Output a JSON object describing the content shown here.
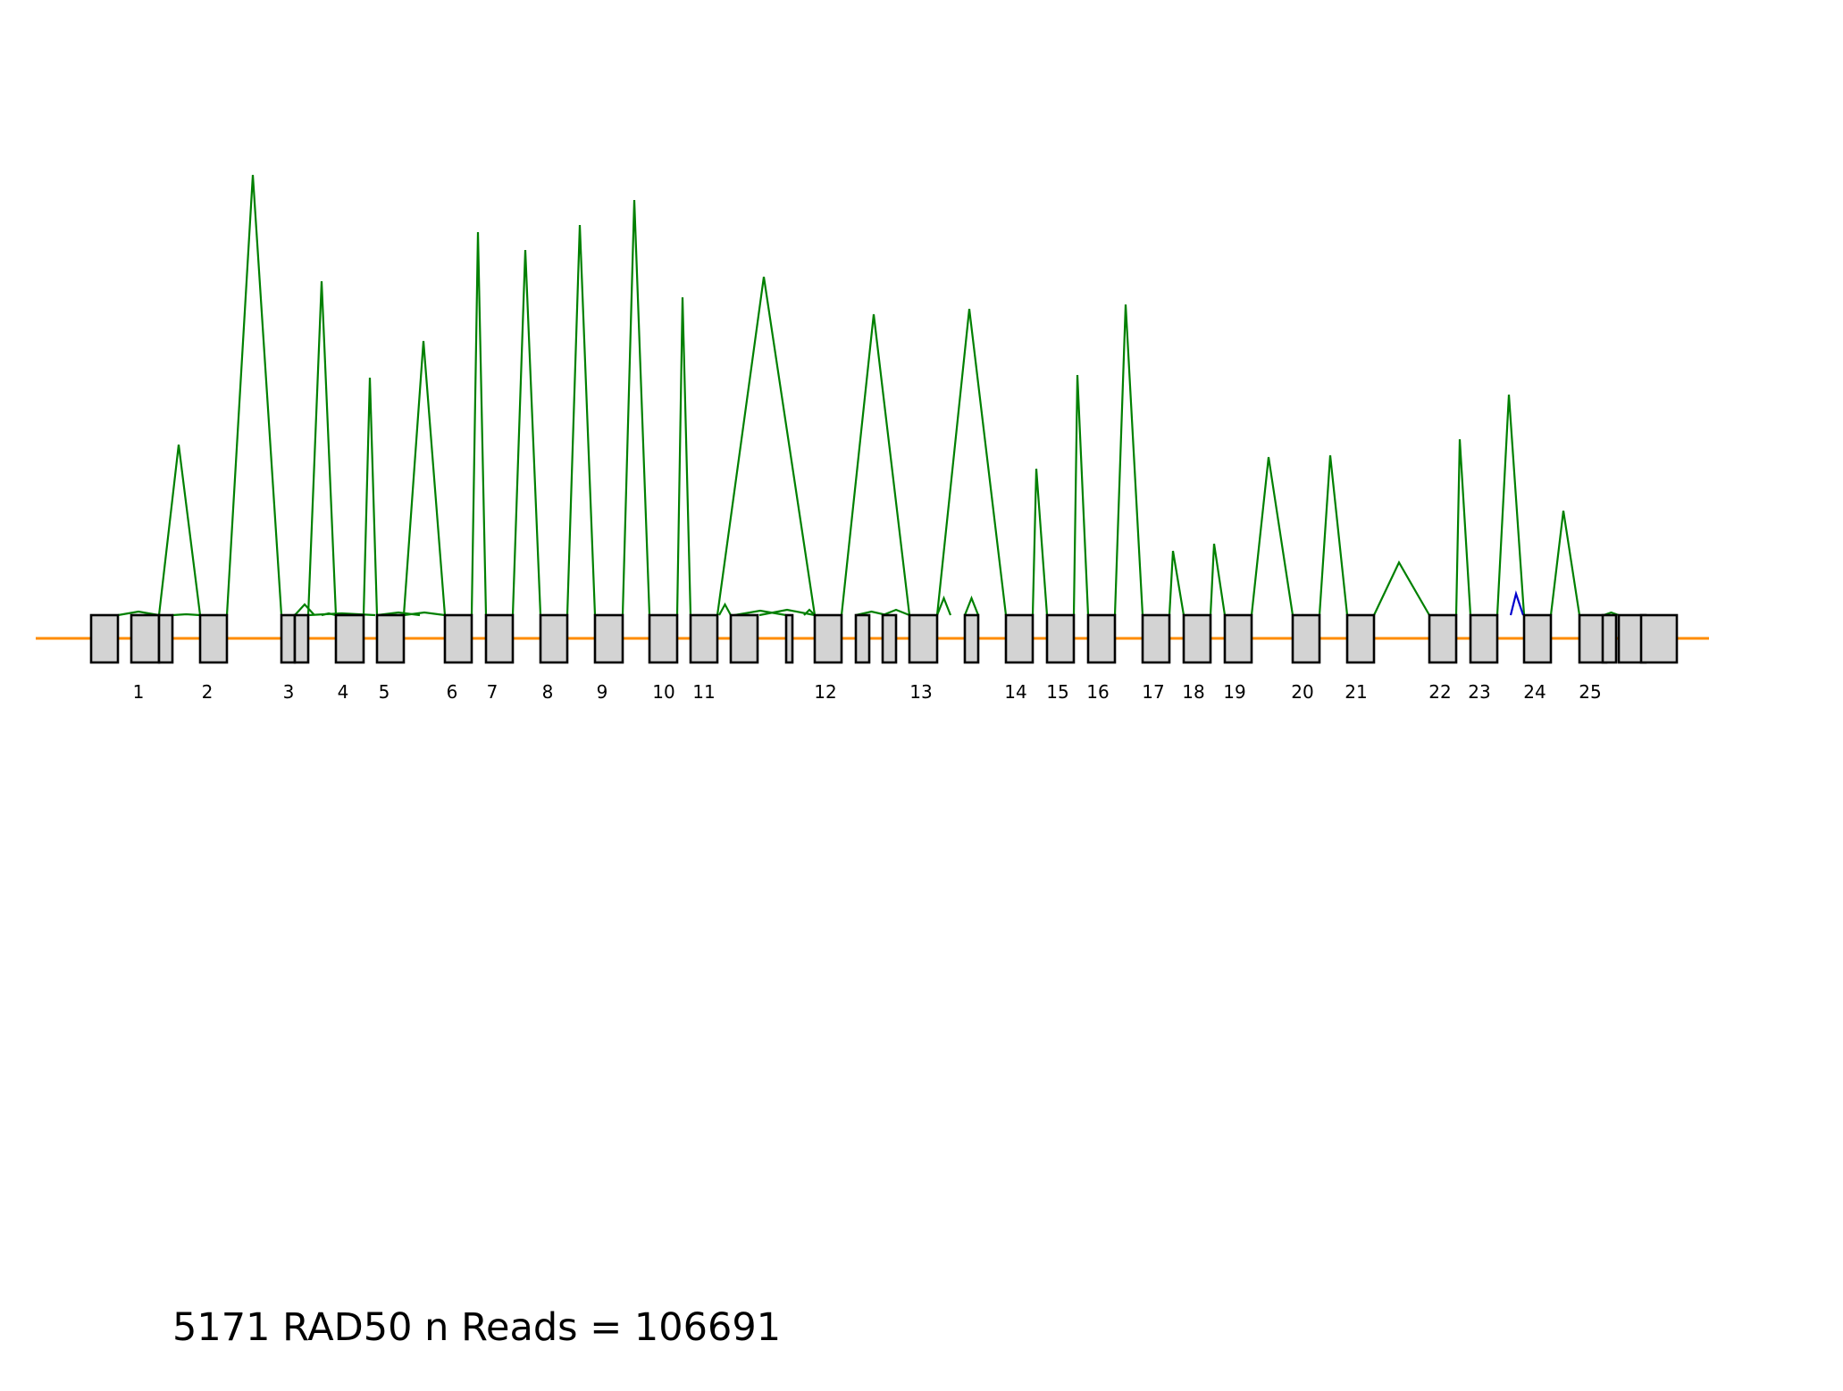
{
  "caption": {
    "gene_id": "5171",
    "gene": "RAD50",
    "reads_label": "n Reads =",
    "n_reads": "106691"
  },
  "colors": {
    "backbone": "#ff8c00",
    "junction": "#008000",
    "junction_alt": "#0000cd",
    "exon_fill": "#d3d3d3",
    "exon_stroke": "#000000"
  },
  "exon_labels": [
    "1",
    "2",
    "3",
    "4",
    "5",
    "6",
    "7",
    "8",
    "9",
    "10",
    "11",
    "12",
    "13",
    "14",
    "15",
    "16",
    "17",
    "18",
    "19",
    "20",
    "21",
    "22",
    "23",
    "24",
    "25"
  ],
  "exon_count_drawn": 40,
  "junctions": [
    {
      "from_exon": 2,
      "to_exon": 3,
      "reads": 0.46,
      "color": "junction"
    },
    {
      "from_exon": 3,
      "to_exon": 4,
      "reads": 1.0,
      "color": "junction"
    },
    {
      "from_exon": 5,
      "to_exon": 6,
      "reads": 0.72,
      "color": "junction"
    },
    {
      "from_exon": 6,
      "to_exon": 7,
      "reads": 0.51,
      "color": "junction"
    },
    {
      "from_exon": 7,
      "to_exon": 8,
      "reads": 0.61,
      "color": "junction"
    },
    {
      "from_exon": 8,
      "to_exon": 9,
      "reads": 0.87,
      "color": "junction"
    },
    {
      "from_exon": 9,
      "to_exon": 10,
      "reads": 0.83,
      "color": "junction"
    },
    {
      "from_exon": 10,
      "to_exon": 11,
      "reads": 0.88,
      "color": "junction"
    },
    {
      "from_exon": 11,
      "to_exon": 12,
      "reads": 0.94,
      "color": "junction"
    },
    {
      "from_exon": 12,
      "to_exon": 13,
      "reads": 0.73,
      "color": "junction"
    },
    {
      "from_exon": 13,
      "to_exon": 14,
      "reads": 0.77,
      "color": "junction"
    },
    {
      "from_exon": 14,
      "to_exon": 15,
      "reads": 0.68,
      "color": "junction"
    },
    {
      "from_exon": 15,
      "to_exon": 16,
      "reads": 0.69,
      "color": "junction"
    },
    {
      "from_exon": 16,
      "to_exon": 17,
      "reads": 0.33,
      "color": "junction"
    },
    {
      "from_exon": 17,
      "to_exon": 18,
      "reads": 0.55,
      "color": "junction"
    },
    {
      "from_exon": 18,
      "to_exon": 19,
      "reads": 0.7,
      "color": "junction"
    },
    {
      "from_exon": 19,
      "to_exon": 20,
      "reads": 0.19,
      "color": "junction"
    },
    {
      "from_exon": 20,
      "to_exon": 21,
      "reads": 0.16,
      "color": "junction"
    },
    {
      "from_exon": 21,
      "to_exon": 22,
      "reads": 0.36,
      "color": "junction"
    },
    {
      "from_exon": 22,
      "to_exon": 23,
      "reads": 0.36,
      "color": "junction"
    },
    {
      "from_exon": 23,
      "to_exon": 24,
      "reads": 0.12,
      "color": "junction"
    },
    {
      "from_exon": 24,
      "to_exon": 25,
      "reads": 0.41,
      "color": "junction"
    },
    {
      "from_exon": 25,
      "to_exon": 26,
      "reads": 0.51,
      "color": "junction"
    },
    {
      "from_exon": 26,
      "to_exon": 27,
      "reads": 0.3,
      "color": "junction"
    },
    {
      "from_exon": 27,
      "to_exon": 28,
      "reads": 0.1,
      "color": "junction_alt"
    }
  ]
}
